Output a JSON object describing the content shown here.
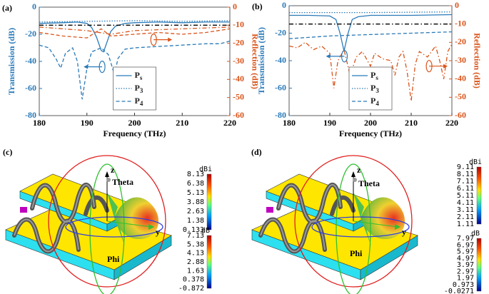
{
  "chart_data": [
    {
      "type": "line",
      "label": "(a)",
      "xlabel": "Frequency (THz)",
      "ylabel": "Transmission (dB)",
      "y2label": "Reflection (dB)",
      "xlim": [
        180,
        220
      ],
      "xticks": [
        180,
        190,
        200,
        210,
        220
      ],
      "ylim": [
        -80,
        0
      ],
      "yticks": [
        -80,
        -60,
        -40,
        -20,
        0
      ],
      "y2lim": [
        -60,
        0
      ],
      "y2ticks": [
        -60,
        -50,
        -40,
        -30,
        -20,
        -10,
        0
      ],
      "legend": "lower center",
      "series": [
        {
          "name": "Ps",
          "color": "#2a7ab8",
          "dash": "solid",
          "x": [
            180,
            185,
            188,
            190,
            191,
            192,
            193,
            193.5,
            194,
            195,
            196,
            198,
            200,
            205,
            210,
            215,
            220
          ],
          "values": [
            -12,
            -11.5,
            -11,
            -12,
            -15,
            -22,
            -32,
            -33,
            -28,
            -18,
            -14,
            -12,
            -11.5,
            -11,
            -11.5,
            -11,
            -11
          ]
        },
        {
          "name": "P3",
          "color": "#2a7ab8",
          "dash": "dotted",
          "x": [
            180,
            190,
            200,
            210,
            220
          ],
          "values": [
            -11,
            -10.5,
            -10,
            -10.5,
            -10
          ]
        },
        {
          "name": "P4",
          "color": "#2a7ab8",
          "dash": "dashed",
          "x": [
            180,
            182,
            183.5,
            184.5,
            185.5,
            187,
            188,
            189,
            190,
            191,
            193,
            194.5,
            195.8,
            196.5,
            198,
            200,
            205,
            210,
            215,
            218,
            220
          ],
          "values": [
            -28,
            -30,
            -38,
            -45,
            -34,
            -30,
            -40,
            -68,
            -45,
            -33,
            -30,
            -35,
            -50,
            -38,
            -31,
            -30,
            -29,
            -28,
            -27,
            -27,
            -25
          ]
        },
        {
          "color": "#d9541a",
          "dash": "dashed",
          "axis": "y2",
          "x": [
            180,
            185,
            190,
            193,
            195,
            200,
            205,
            210,
            215,
            220
          ],
          "values": [
            -14,
            -16,
            -17,
            -12,
            -16,
            -15,
            -14,
            -15,
            -14,
            -12
          ]
        },
        {
          "color": "#d9541a",
          "dash": "dashdot",
          "axis": "y2",
          "x": [
            180,
            190,
            195,
            200,
            210,
            220
          ],
          "values": [
            -11,
            -13,
            -15,
            -13,
            -12,
            -11
          ]
        },
        {
          "color": "#000000",
          "dash": "dashdot",
          "axis": "y2",
          "x": [
            180,
            220
          ],
          "values": [
            -10,
            -10
          ]
        }
      ]
    },
    {
      "type": "line",
      "label": "(b)",
      "xlabel": "Frequency (THz)",
      "ylabel": "Transmission (dB)",
      "y2label": "Reflection (dB)",
      "xlim": [
        180,
        220
      ],
      "xticks": [
        180,
        190,
        200,
        210,
        220
      ],
      "ylim": [
        -80,
        0
      ],
      "yticks": [
        -80,
        -60,
        -40,
        -20,
        0
      ],
      "y2lim": [
        -60,
        0
      ],
      "y2ticks": [
        -60,
        -50,
        -40,
        -30,
        -20,
        -10,
        0
      ],
      "legend": "lower center",
      "series": [
        {
          "name": "Ps",
          "color": "#2a7ab8",
          "dash": "solid",
          "x": [
            180,
            185,
            190,
            191.5,
            192.5,
            193.5,
            194.5,
            195.5,
            197,
            200,
            210,
            220
          ],
          "values": [
            -7,
            -7,
            -7.5,
            -10,
            -20,
            -33,
            -20,
            -10,
            -8,
            -7,
            -7,
            -6.5
          ]
        },
        {
          "name": "P3",
          "color": "#2a7ab8",
          "dash": "dotted",
          "x": [
            180,
            200,
            220
          ],
          "values": [
            -5,
            -5,
            -4.5
          ]
        },
        {
          "name": "P4",
          "color": "#2a7ab8",
          "dash": "dashed",
          "x": [
            180,
            190,
            200,
            210,
            220
          ],
          "values": [
            -24,
            -22,
            -21,
            -20,
            -19
          ]
        },
        {
          "color": "#d9541a",
          "dash": "dashdot",
          "axis": "y2",
          "x": [
            180,
            182,
            184,
            186,
            188,
            190,
            191,
            192,
            193.5,
            195,
            196.5,
            198,
            200,
            201,
            203,
            205,
            206,
            207,
            208,
            209,
            210,
            211,
            212,
            214,
            216,
            217,
            218,
            219,
            220
          ],
          "values": [
            -22,
            -23,
            -20,
            -24,
            -22,
            -26,
            -45,
            -30,
            -24,
            -38,
            -28,
            -25,
            -33,
            -26,
            -29,
            -30,
            -38,
            -28,
            -25,
            -36,
            -52,
            -32,
            -25,
            -28,
            -22,
            -30,
            -40,
            -25,
            -21
          ]
        },
        {
          "color": "#000000",
          "dash": "dashdot",
          "axis": "y2",
          "x": [
            180,
            220
          ],
          "values": [
            -10,
            -10
          ]
        }
      ]
    }
  ],
  "panels": [
    {
      "label": "(c)",
      "z": "z",
      "y": "y",
      "theta": "Theta",
      "phi": "Phi",
      "colorbars": [
        {
          "unit": "dBi",
          "ticks": [
            "8.13",
            "6.38",
            "5.13",
            "3.88",
            "2.63",
            "1.38",
            "0.133"
          ]
        },
        {
          "unit": "dB",
          "ticks": [
            "7.13",
            "5.38",
            "4.13",
            "2.88",
            "1.63",
            "0.378",
            "-0.872"
          ]
        }
      ]
    },
    {
      "label": "(d)",
      "z": "z",
      "y": "y",
      "theta": "Theta",
      "phi": "Phi",
      "colorbars": [
        {
          "unit": "dBi",
          "ticks": [
            "9.11",
            "8.11",
            "7.11",
            "6.11",
            "5.11",
            "4.11",
            "3.11",
            "2.11",
            "1.11"
          ]
        },
        {
          "unit": "dB",
          "ticks": [
            "7.97",
            "6.97",
            "5.97",
            "4.97",
            "3.97",
            "2.97",
            "1.97",
            "0.973",
            "-0.0271"
          ]
        }
      ]
    }
  ]
}
